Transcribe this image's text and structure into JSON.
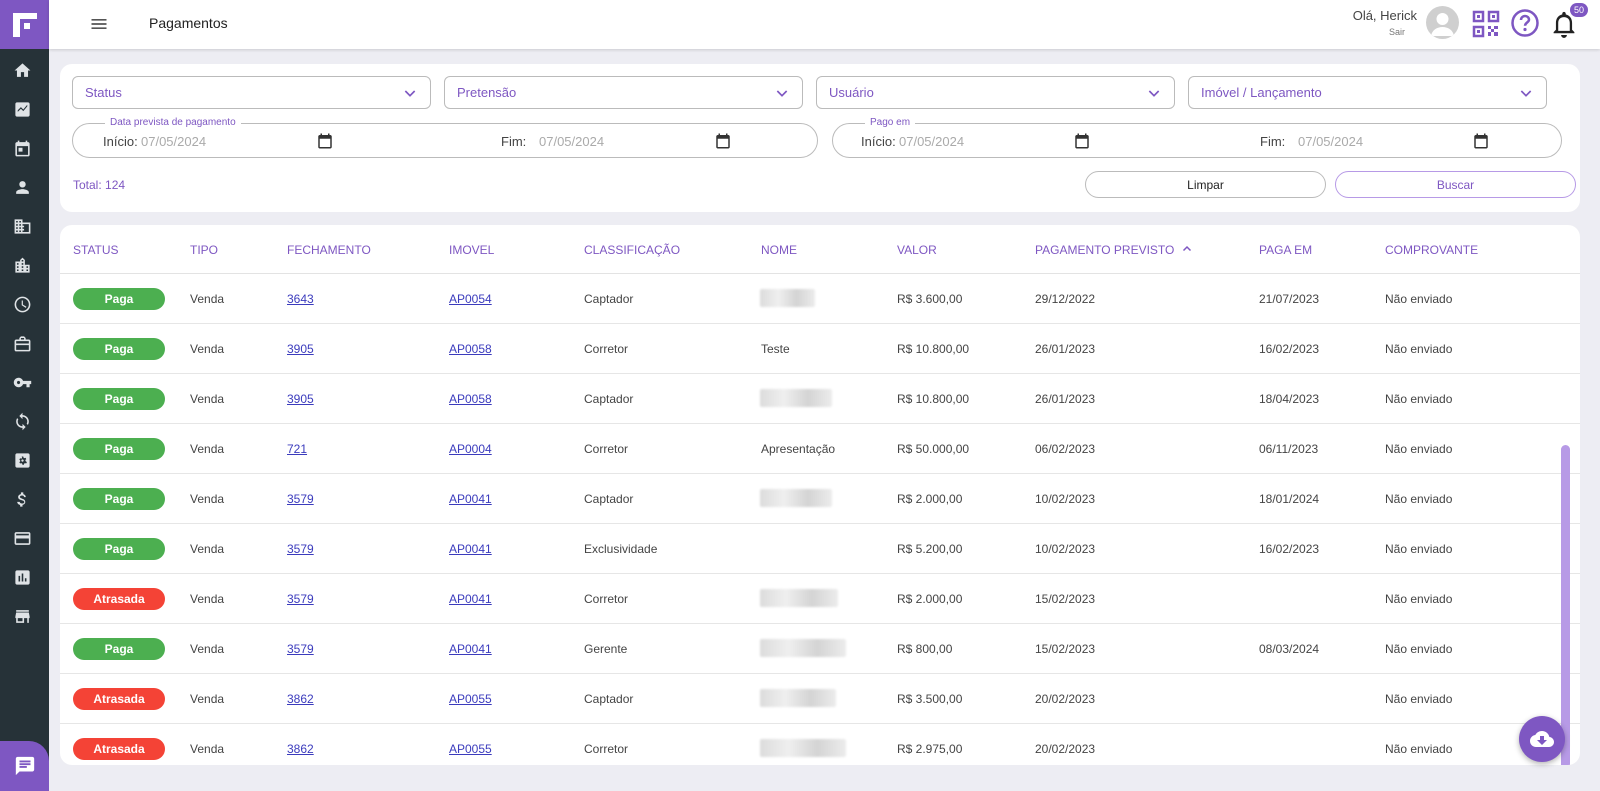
{
  "header": {
    "page_title": "Pagamentos",
    "greeting": "Olá, Herick",
    "logout": "Sair",
    "notification_count": "50"
  },
  "filters": {
    "status_placeholder": "Status",
    "pretensao_placeholder": "Pretensão",
    "usuario_placeholder": "Usuário",
    "imovel_placeholder": "Imóvel / Lançamento",
    "previsto": {
      "legend": "Data prevista de pagamento",
      "start_label": "Início:",
      "start_value": "07/05/2024",
      "end_label": "Fim:",
      "end_value": "07/05/2024"
    },
    "pago": {
      "legend": "Pago em",
      "start_label": "Início:",
      "start_value": "07/05/2024",
      "end_label": "Fim:",
      "end_value": "07/05/2024"
    },
    "total": "Total: 124",
    "clear_label": "Limpar",
    "search_label": "Buscar"
  },
  "table": {
    "headers": [
      "STATUS",
      "TIPO",
      "FECHAMENTO",
      "IMOVEL",
      "CLASSIFICAÇÃO",
      "NOME",
      "VALOR",
      "PAGAMENTO PREVISTO",
      "PAGA EM",
      "COMPROVANTE"
    ],
    "rows": [
      {
        "status": "Paga",
        "tipo": "Venda",
        "fechamento": "3643",
        "imovel": "AP0054",
        "classificacao": "Captador",
        "nome": "",
        "valor": "R$ 3.600,00",
        "previsto": "29/12/2022",
        "paga_em": "21/07/2023",
        "comprovante": "Não enviado"
      },
      {
        "status": "Paga",
        "tipo": "Venda",
        "fechamento": "3905",
        "imovel": "AP0058",
        "classificacao": "Corretor",
        "nome": "Teste",
        "valor": "R$ 10.800,00",
        "previsto": "26/01/2023",
        "paga_em": "16/02/2023",
        "comprovante": "Não enviado"
      },
      {
        "status": "Paga",
        "tipo": "Venda",
        "fechamento": "3905",
        "imovel": "AP0058",
        "classificacao": "Captador",
        "nome": "",
        "valor": "R$ 10.800,00",
        "previsto": "26/01/2023",
        "paga_em": "18/04/2023",
        "comprovante": "Não enviado"
      },
      {
        "status": "Paga",
        "tipo": "Venda",
        "fechamento": "721",
        "imovel": "AP0004",
        "classificacao": "Corretor",
        "nome": "Apresentação",
        "valor": "R$ 50.000,00",
        "previsto": "06/02/2023",
        "paga_em": "06/11/2023",
        "comprovante": "Não enviado"
      },
      {
        "status": "Paga",
        "tipo": "Venda",
        "fechamento": "3579",
        "imovel": "AP0041",
        "classificacao": "Captador",
        "nome": "",
        "valor": "R$ 2.000,00",
        "previsto": "10/02/2023",
        "paga_em": "18/01/2024",
        "comprovante": "Não enviado"
      },
      {
        "status": "Paga",
        "tipo": "Venda",
        "fechamento": "3579",
        "imovel": "AP0041",
        "classificacao": "Exclusividade",
        "nome": "",
        "valor": "R$ 5.200,00",
        "previsto": "10/02/2023",
        "paga_em": "16/02/2023",
        "comprovante": "Não enviado"
      },
      {
        "status": "Atrasada",
        "tipo": "Venda",
        "fechamento": "3579",
        "imovel": "AP0041",
        "classificacao": "Corretor",
        "nome": "",
        "valor": "R$ 2.000,00",
        "previsto": "15/02/2023",
        "paga_em": "",
        "comprovante": "Não enviado"
      },
      {
        "status": "Paga",
        "tipo": "Venda",
        "fechamento": "3579",
        "imovel": "AP0041",
        "classificacao": "Gerente",
        "nome": "",
        "valor": "R$ 800,00",
        "previsto": "15/02/2023",
        "paga_em": "08/03/2024",
        "comprovante": "Não enviado"
      },
      {
        "status": "Atrasada",
        "tipo": "Venda",
        "fechamento": "3862",
        "imovel": "AP0055",
        "classificacao": "Captador",
        "nome": "",
        "valor": "R$ 3.500,00",
        "previsto": "20/02/2023",
        "paga_em": "",
        "comprovante": "Não enviado"
      },
      {
        "status": "Atrasada",
        "tipo": "Venda",
        "fechamento": "3862",
        "imovel": "AP0055",
        "classificacao": "Corretor",
        "nome": "",
        "valor": "R$ 2.975,00",
        "previsto": "20/02/2023",
        "paga_em": "",
        "comprovante": "Não enviado"
      }
    ]
  },
  "colors": {
    "accent": "#7e57c2",
    "sidebar": "#263238",
    "paga": "#4caf50",
    "atrasada": "#f44336"
  },
  "icons": [
    "home-icon",
    "chart-icon",
    "calendar-icon",
    "person-icon",
    "domain-icon",
    "building-icon",
    "clock-icon",
    "briefcase-icon",
    "key-icon",
    "sync-icon",
    "settings-box-icon",
    "dollar-icon",
    "card-icon",
    "bar-chart-icon",
    "store-icon",
    "chat-icon",
    "cloud-download-icon",
    "qr-code-icon",
    "help-icon",
    "bell-icon",
    "menu-icon"
  ]
}
